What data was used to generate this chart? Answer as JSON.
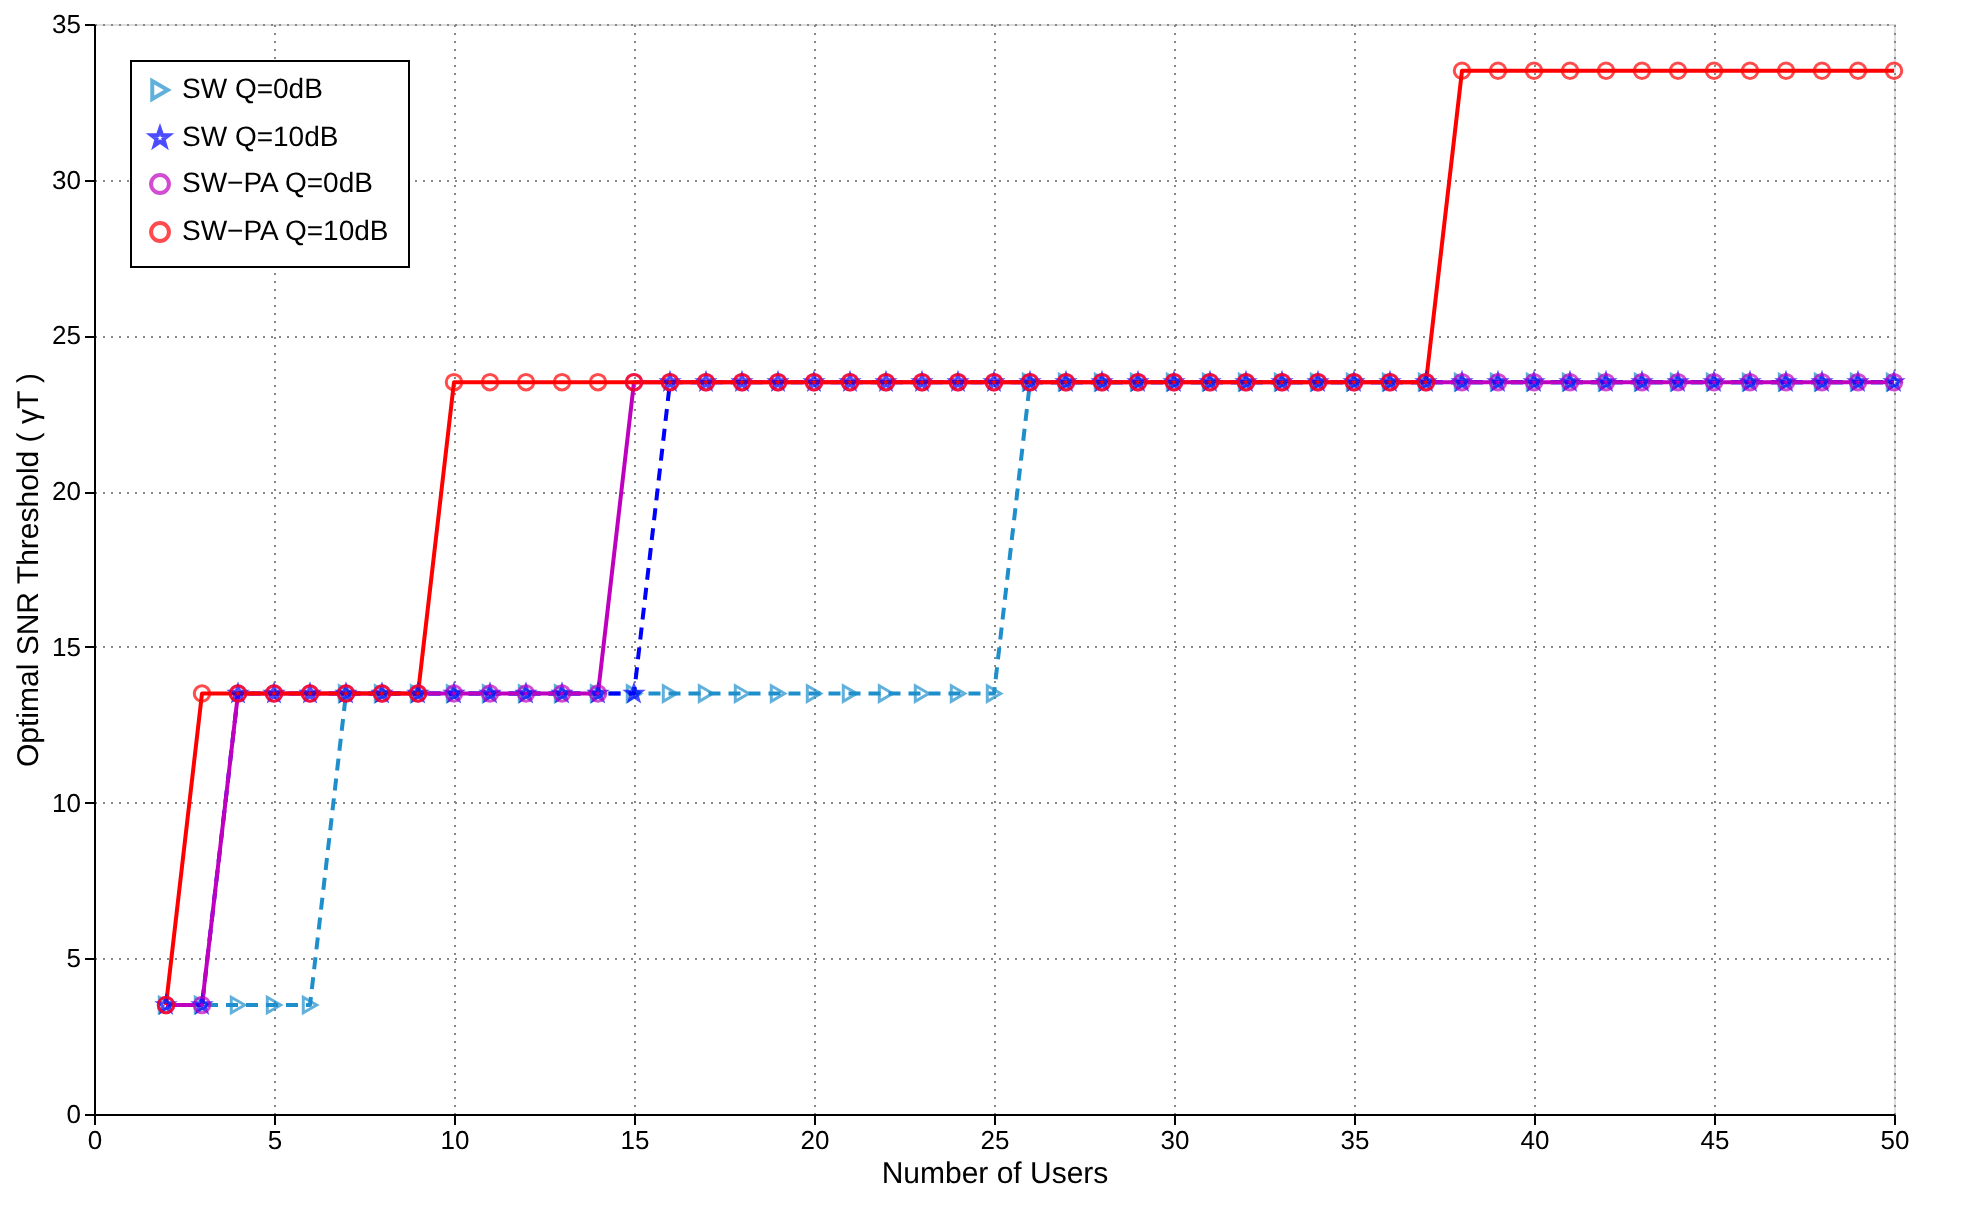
{
  "chart_data": {
    "type": "line",
    "xlabel": "Number of Users",
    "ylabel": "Optimal SNR Threshold  ( γT )",
    "x": [
      2,
      3,
      4,
      5,
      6,
      7,
      8,
      9,
      10,
      11,
      12,
      13,
      14,
      15,
      16,
      17,
      18,
      19,
      20,
      21,
      22,
      23,
      24,
      25,
      26,
      27,
      28,
      29,
      30,
      31,
      32,
      33,
      34,
      35,
      36,
      37,
      38,
      39,
      40,
      41,
      42,
      43,
      44,
      45,
      46,
      47,
      48,
      49,
      50
    ],
    "series": [
      {
        "name": "SW Q=0dB",
        "color": "#1f8fcc",
        "line_style": "dashed",
        "marker": "triangle",
        "values": [
          3.5,
          3.5,
          3.5,
          3.5,
          3.5,
          13.5,
          13.5,
          13.5,
          13.5,
          13.5,
          13.5,
          13.5,
          13.5,
          13.5,
          13.5,
          13.5,
          13.5,
          13.5,
          13.5,
          13.5,
          13.5,
          13.5,
          13.5,
          13.5,
          23.5,
          23.5,
          23.5,
          23.5,
          23.5,
          23.5,
          23.5,
          23.5,
          23.5,
          23.5,
          23.5,
          23.5,
          23.5,
          23.5,
          23.5,
          23.5,
          23.5,
          23.5,
          23.5,
          23.5,
          23.5,
          23.5,
          23.5,
          23.5,
          23.5
        ]
      },
      {
        "name": "SW Q=10dB",
        "color": "#0000ff",
        "line_style": "dashed",
        "marker": "star",
        "values": [
          3.5,
          3.5,
          13.5,
          13.5,
          13.5,
          13.5,
          13.5,
          13.5,
          13.5,
          13.5,
          13.5,
          13.5,
          13.5,
          13.5,
          23.5,
          23.5,
          23.5,
          23.5,
          23.5,
          23.5,
          23.5,
          23.5,
          23.5,
          23.5,
          23.5,
          23.5,
          23.5,
          23.5,
          23.5,
          23.5,
          23.5,
          23.5,
          23.5,
          23.5,
          23.5,
          23.5,
          23.5,
          23.5,
          23.5,
          23.5,
          23.5,
          23.5,
          23.5,
          23.5,
          23.5,
          23.5,
          23.5,
          23.5,
          23.5
        ]
      },
      {
        "name": "SW−PA Q=0dB",
        "color": "#bf00bf",
        "line_style": "solid",
        "marker": "circle",
        "values": [
          3.5,
          3.5,
          13.5,
          13.5,
          13.5,
          13.5,
          13.5,
          13.5,
          13.5,
          13.5,
          13.5,
          13.5,
          13.5,
          23.5,
          23.5,
          23.5,
          23.5,
          23.5,
          23.5,
          23.5,
          23.5,
          23.5,
          23.5,
          23.5,
          23.5,
          23.5,
          23.5,
          23.5,
          23.5,
          23.5,
          23.5,
          23.5,
          23.5,
          23.5,
          23.5,
          23.5,
          23.5,
          23.5,
          23.5,
          23.5,
          23.5,
          23.5,
          23.5,
          23.5,
          23.5,
          23.5,
          23.5,
          23.5,
          23.5
        ]
      },
      {
        "name": "SW−PA Q=10dB",
        "color": "#ff0000",
        "line_style": "solid",
        "marker": "circle",
        "values": [
          3.5,
          13.5,
          13.5,
          13.5,
          13.5,
          13.5,
          13.5,
          13.5,
          23.5,
          23.5,
          23.5,
          23.5,
          23.5,
          23.5,
          23.5,
          23.5,
          23.5,
          23.5,
          23.5,
          23.5,
          23.5,
          23.5,
          23.5,
          23.5,
          23.5,
          23.5,
          23.5,
          23.5,
          23.5,
          23.5,
          23.5,
          23.5,
          23.5,
          23.5,
          23.5,
          23.5,
          33.5,
          33.5,
          33.5,
          33.5,
          33.5,
          33.5,
          33.5,
          33.5,
          33.5,
          33.5,
          33.5,
          33.5,
          33.5
        ]
      }
    ],
    "xlim": [
      0,
      50
    ],
    "xticks": [
      0,
      5,
      10,
      15,
      20,
      25,
      30,
      35,
      40,
      45,
      50
    ],
    "ylim": [
      0,
      35
    ],
    "yticks": [
      0,
      5,
      10,
      15,
      20,
      25,
      30,
      35
    ],
    "grid": true,
    "legend": "top left"
  }
}
